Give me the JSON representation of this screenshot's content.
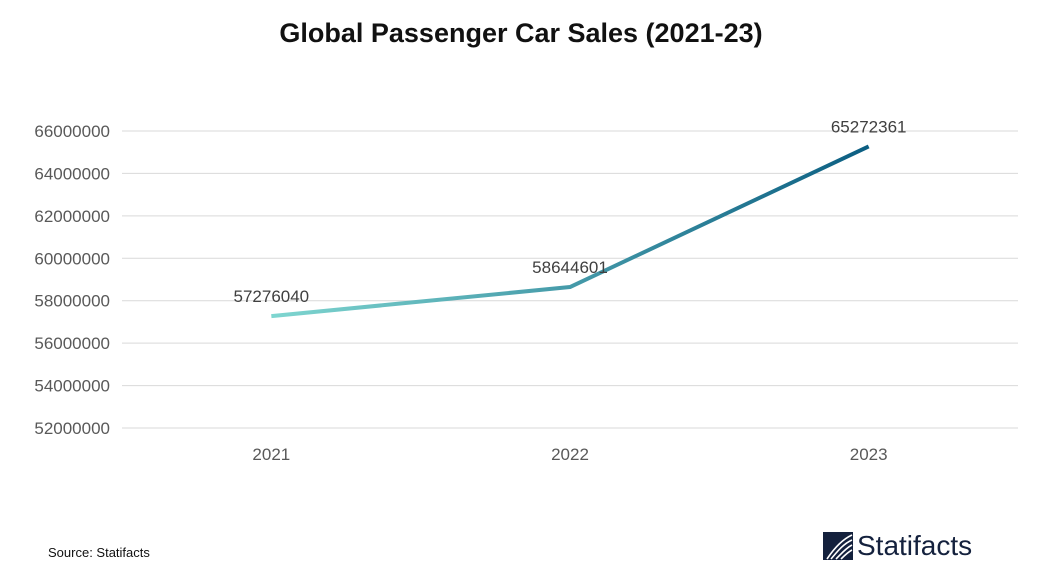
{
  "title": "Global Passenger Car Sales (2021-23)",
  "source": "Source: Statifacts",
  "logo_text": "Statifacts",
  "chart_data": {
    "type": "line",
    "title": "Global Passenger Car Sales (2021-23)",
    "categories": [
      "2021",
      "2022",
      "2023"
    ],
    "values": [
      57276040,
      58644601,
      65272361
    ],
    "data_labels": [
      "57276040",
      "58644601",
      "65272361"
    ],
    "yticks": [
      "52000000",
      "54000000",
      "56000000",
      "58000000",
      "60000000",
      "62000000",
      "64000000",
      "66000000"
    ],
    "ylim": [
      52000000,
      66000000
    ],
    "grid": true,
    "legend": "none",
    "line_gradient": [
      "#7fd6d0",
      "#0b5e82"
    ]
  }
}
